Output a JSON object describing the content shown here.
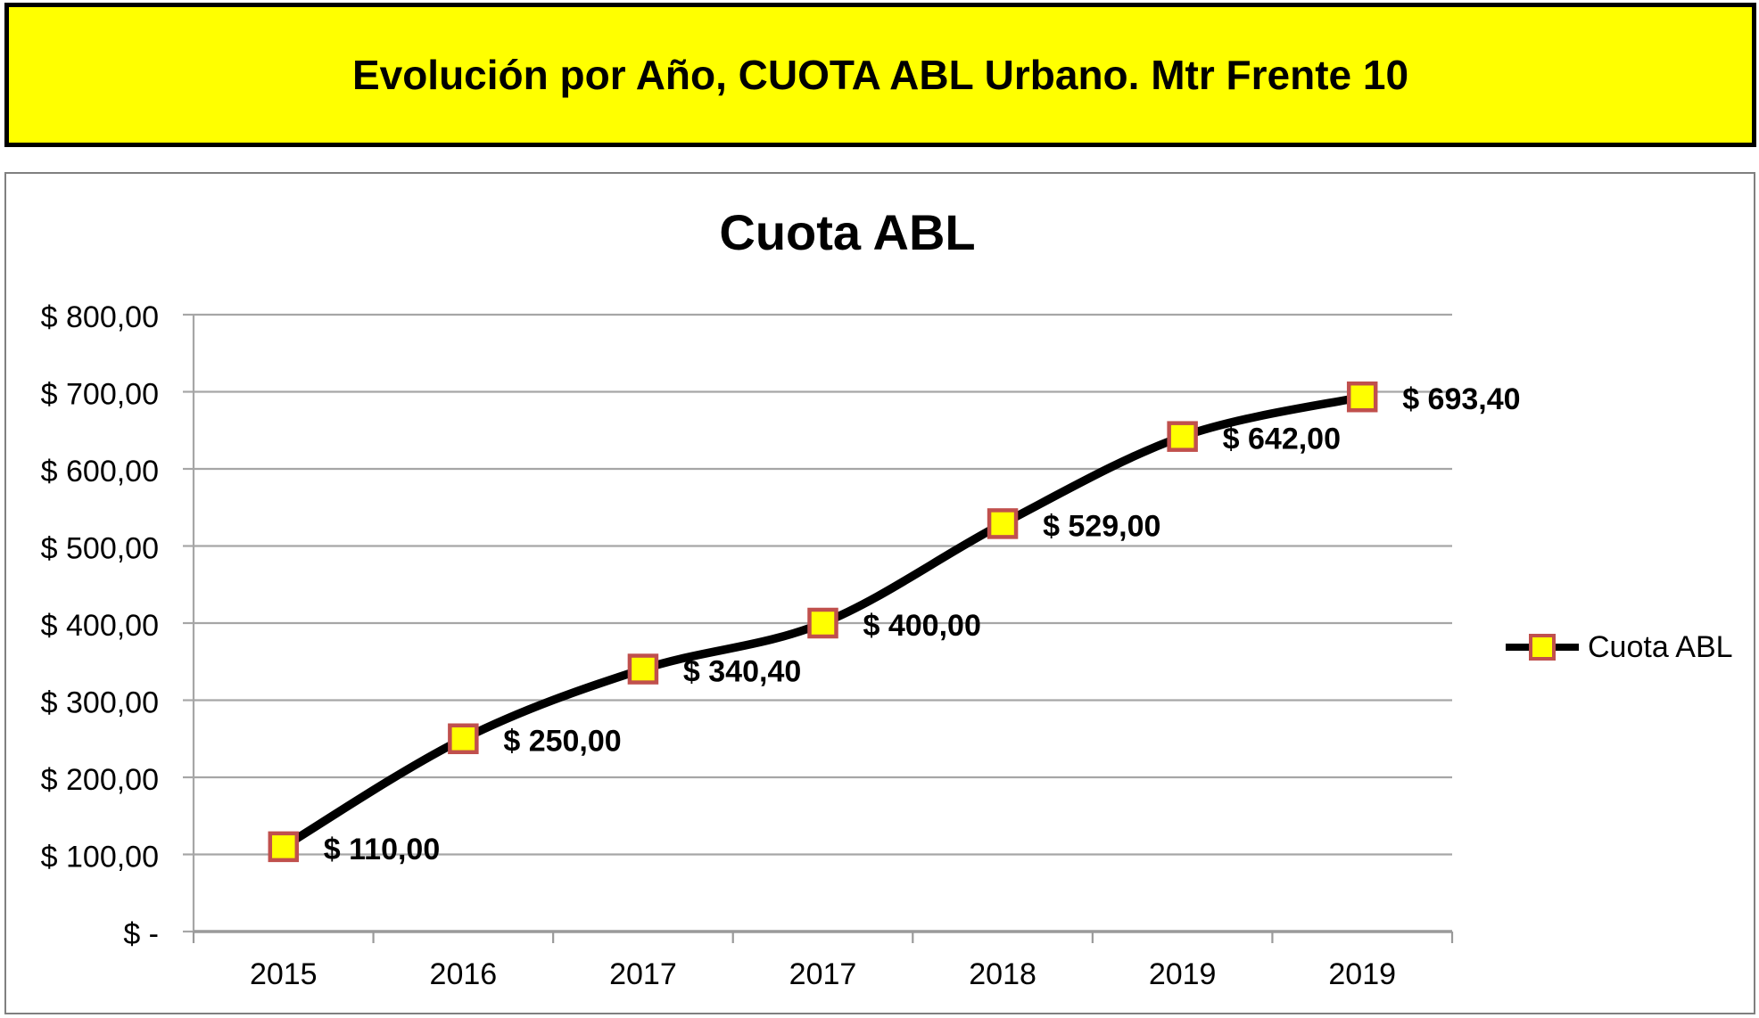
{
  "banner": {
    "title": "Evolución por Año, CUOTA ABL Urbano. Mtr Frente 10",
    "bg": "#FFFF00",
    "border": "#000000"
  },
  "chart_data": {
    "type": "line",
    "title": "Cuota ABL",
    "categories": [
      "2015",
      "2016",
      "2017",
      "2017",
      "2018",
      "2019",
      "2019"
    ],
    "series": [
      {
        "name": "Cuota ABL",
        "values": [
          110,
          250,
          340.4,
          400,
          529,
          642,
          693.4
        ],
        "point_labels": [
          "$ 110,00",
          "$ 250,00",
          "$ 340,40",
          "$ 400,00",
          "$ 529,00",
          "$ 642,00",
          "$ 693,40"
        ],
        "line_color": "#000000",
        "marker_fill": "#FFFF00",
        "marker_stroke": "#C0504D",
        "smooth": true
      }
    ],
    "xlabel": "",
    "ylabel": "",
    "ylim": [
      0,
      800
    ],
    "ytick_step": 100,
    "ytick_labels": [
      "$ -",
      "$ 100,00",
      "$ 200,00",
      "$ 300,00",
      "$ 400,00",
      "$ 500,00",
      "$ 600,00",
      "$ 700,00",
      "$ 800,00"
    ],
    "grid": true,
    "legend_position": "right"
  }
}
